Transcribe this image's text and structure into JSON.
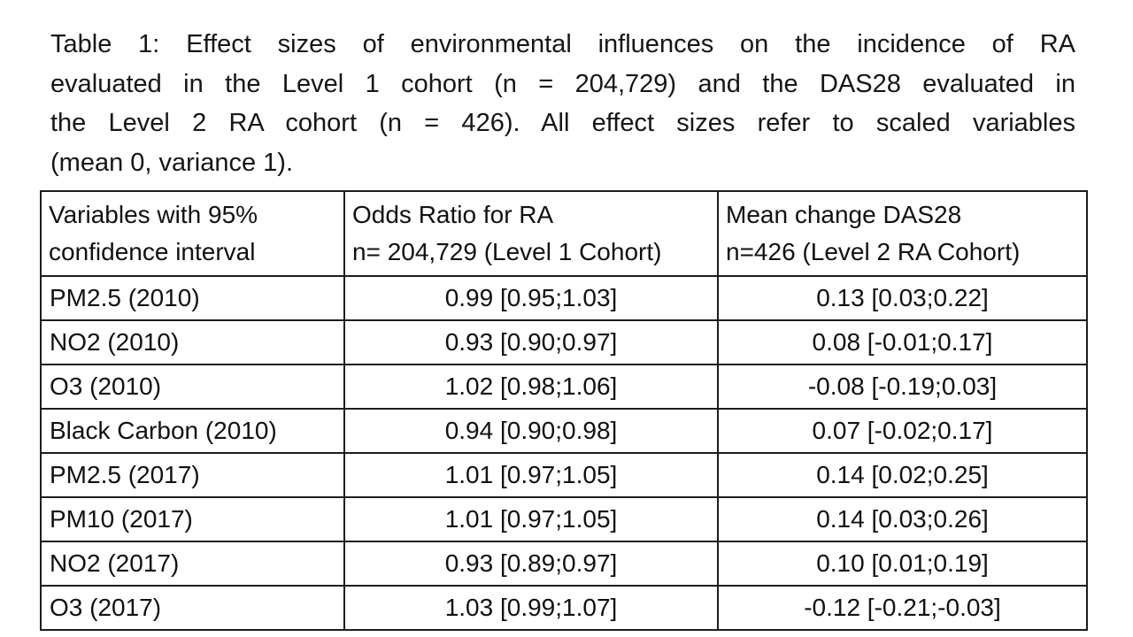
{
  "caption": {
    "full_text": "Table 1: Effect sizes of environmental influences on the incidence of RA evaluated in the Level 1 cohort (n = 204,729) and the DAS28 evaluated in the Level 2 RA cohort (n = 426). All effect sizes refer to scaled variables (mean 0, variance 1).",
    "lines": [
      "Table 1: Effect sizes of environmental influences on the incidence of RA",
      "evaluated in the Level 1 cohort (n = 204,729) and the DAS28 evaluated in",
      "the Level 2 RA cohort (n = 426). All effect sizes refer to scaled variables",
      "(mean 0, variance 1)."
    ]
  },
  "table": {
    "headers": [
      {
        "line1": "Variables with 95%",
        "line2": "confidence interval"
      },
      {
        "line1": "Odds Ratio for RA",
        "line2": "n= 204,729 (Level 1 Cohort)"
      },
      {
        "line1": "Mean change DAS28",
        "line2": "n=426 (Level 2 RA Cohort)"
      }
    ],
    "rows": [
      {
        "variable": "PM2.5 (2010)",
        "odds_ratio": "0.99 [0.95;1.03]",
        "mean_change": "0.13 [0.03;0.22]"
      },
      {
        "variable": "NO2 (2010)",
        "odds_ratio": "0.93 [0.90;0.97]",
        "mean_change": "0.08 [-0.01;0.17]"
      },
      {
        "variable": "O3 (2010)",
        "odds_ratio": "1.02 [0.98;1.06]",
        "mean_change": "-0.08 [-0.19;0.03]"
      },
      {
        "variable": "Black Carbon (2010)",
        "odds_ratio": "0.94 [0.90;0.98]",
        "mean_change": "0.07 [-0.02;0.17]"
      },
      {
        "variable": "PM2.5 (2017)",
        "odds_ratio": "1.01 [0.97;1.05]",
        "mean_change": "0.14 [0.02;0.25]"
      },
      {
        "variable": "PM10 (2017)",
        "odds_ratio": "1.01 [0.97;1.05]",
        "mean_change": "0.14 [0.03;0.26]"
      },
      {
        "variable": "NO2 (2017)",
        "odds_ratio": "0.93 [0.89;0.97]",
        "mean_change": "0.10 [0.01;0.19]"
      },
      {
        "variable": "O3 (2017)",
        "odds_ratio": "1.03 [0.99;1.07]",
        "mean_change": "-0.12 [-0.21;-0.03]"
      }
    ]
  },
  "colors": {
    "background": "#ffffff",
    "text": "#141414",
    "border": "#1d1d1d"
  }
}
